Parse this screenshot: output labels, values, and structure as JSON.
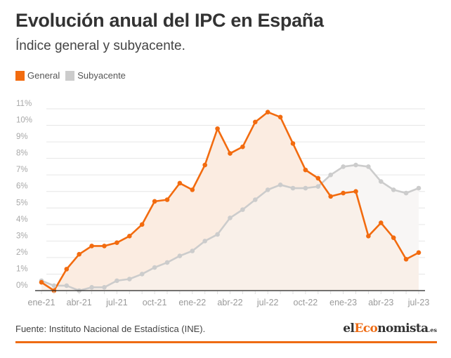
{
  "header": {
    "title": "Evolución anual del IPC en España",
    "subtitle": "Índice general y subyacente."
  },
  "legend": [
    {
      "label": "General",
      "color": "#f26b0f"
    },
    {
      "label": "Subyacente",
      "color": "#cccccc"
    }
  ],
  "footer": {
    "source": "Fuente: Instituto Nacional de Estadística (INE).",
    "logo": {
      "part1": "el",
      "part2": "Eco",
      "part3": "nomista",
      "part4": ".es"
    },
    "accent_color": "#ee6b13"
  },
  "chart_data": {
    "type": "line",
    "title": "Evolución anual del IPC en España",
    "subtitle": "Índice general y subyacente.",
    "xlabel": "",
    "ylabel": "",
    "ylim": [
      0,
      11
    ],
    "grid": true,
    "legend_position": "top-left",
    "y_ticks": [
      "0%",
      "1%",
      "2%",
      "3%",
      "4%",
      "5%",
      "6%",
      "7%",
      "8%",
      "9%",
      "10%",
      "11%"
    ],
    "x_ticks": [
      {
        "index": 0,
        "label": "ene-21"
      },
      {
        "index": 3,
        "label": "abr-21"
      },
      {
        "index": 6,
        "label": "jul-21"
      },
      {
        "index": 9,
        "label": "oct-21"
      },
      {
        "index": 12,
        "label": "ene-22"
      },
      {
        "index": 15,
        "label": "abr-22"
      },
      {
        "index": 18,
        "label": "jul-22"
      },
      {
        "index": 21,
        "label": "oct-22"
      },
      {
        "index": 24,
        "label": "ene-23"
      },
      {
        "index": 27,
        "label": "abr-23"
      },
      {
        "index": 30,
        "label": "jul-23"
      }
    ],
    "x": [
      "ene-21",
      "feb-21",
      "mar-21",
      "abr-21",
      "may-21",
      "jun-21",
      "jul-21",
      "ago-21",
      "sep-21",
      "oct-21",
      "nov-21",
      "dic-21",
      "ene-22",
      "feb-22",
      "mar-22",
      "abr-22",
      "may-22",
      "jun-22",
      "jul-22",
      "ago-22",
      "sep-22",
      "oct-22",
      "nov-22",
      "dic-22",
      "ene-23",
      "feb-23",
      "mar-23",
      "abr-23",
      "may-23",
      "jun-23",
      "jul-23"
    ],
    "series": [
      {
        "name": "General",
        "color": "#f26b0f",
        "fill": "#fcefe6",
        "values": [
          0.5,
          0.0,
          1.3,
          2.2,
          2.7,
          2.7,
          2.9,
          3.3,
          4.0,
          5.4,
          5.5,
          6.5,
          6.1,
          7.6,
          9.8,
          8.3,
          8.7,
          10.2,
          10.8,
          10.5,
          8.9,
          7.3,
          6.8,
          5.7,
          5.9,
          6.0,
          3.3,
          4.1,
          3.2,
          1.9,
          2.3
        ]
      },
      {
        "name": "Subyacente",
        "color": "#cccccc",
        "fill": "#f8f6f5",
        "values": [
          0.6,
          0.3,
          0.3,
          0.0,
          0.2,
          0.2,
          0.6,
          0.7,
          1.0,
          1.4,
          1.7,
          2.1,
          2.4,
          3.0,
          3.4,
          4.4,
          4.9,
          5.5,
          6.1,
          6.4,
          6.2,
          6.2,
          6.3,
          7.0,
          7.5,
          7.6,
          7.5,
          6.6,
          6.1,
          5.9,
          6.2
        ]
      }
    ]
  }
}
